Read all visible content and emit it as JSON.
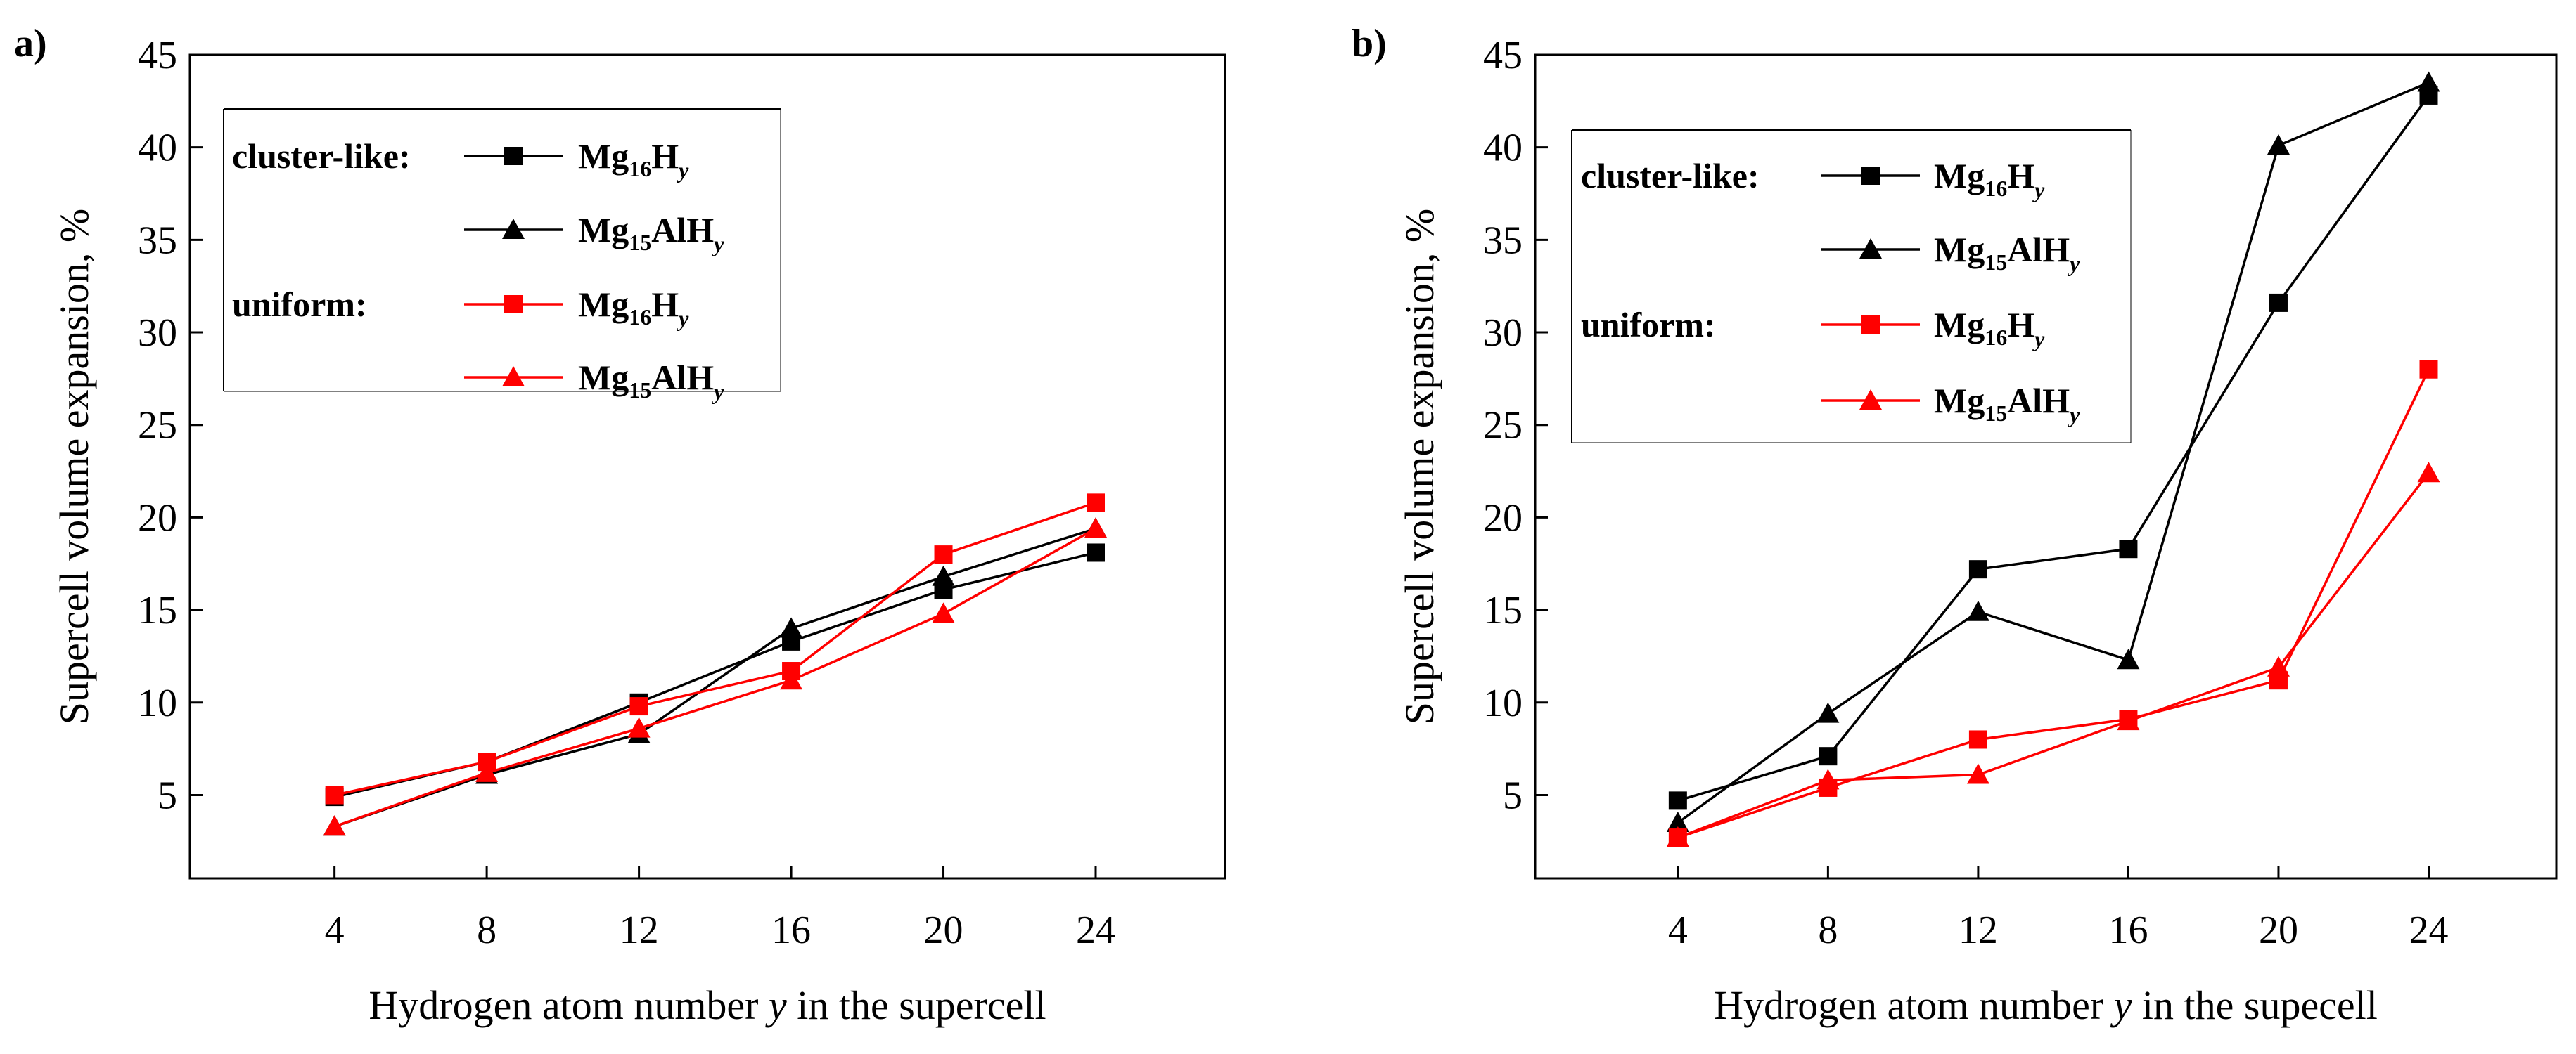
{
  "chart_data": [
    {
      "panel_label": "a)",
      "type": "line",
      "xlabel_pre": "Hydrogen atom number ",
      "xlabel_var": "y",
      "xlabel_post": " in the supercell",
      "ylabel": "Supercell volume expansion, %",
      "x": [
        4,
        8,
        12,
        16,
        20,
        24
      ],
      "xticks": [
        4,
        8,
        12,
        16,
        20,
        24
      ],
      "xlim": [
        0.2,
        27.4
      ],
      "yticks": [
        5,
        10,
        15,
        20,
        25,
        30,
        35,
        40,
        45
      ],
      "ylim": [
        0.5,
        45
      ],
      "legend": {
        "cluster_heading": "cluster-like:",
        "uniform_heading": "uniform:"
      },
      "series": [
        {
          "group": "cluster-like",
          "name": "Mg16Hy",
          "base": "Mg",
          "sub": "16",
          "mid": "H",
          "var": "y",
          "marker": "square",
          "color": "#000000",
          "values": [
            4.9,
            6.8,
            10.0,
            13.3,
            16.1,
            18.1
          ]
        },
        {
          "group": "cluster-like",
          "name": "Mg15AlHy",
          "base": "Mg",
          "sub": "15",
          "mid": "AlH",
          "var": "y",
          "marker": "triangle",
          "color": "#000000",
          "values": [
            3.3,
            6.1,
            8.3,
            14.0,
            16.8,
            19.4
          ]
        },
        {
          "group": "uniform",
          "name": "Mg16Hy",
          "base": "Mg",
          "sub": "16",
          "mid": "H",
          "var": "y",
          "marker": "square",
          "color": "#ff0000",
          "values": [
            5.0,
            6.8,
            9.8,
            11.7,
            18.0,
            20.8
          ]
        },
        {
          "group": "uniform",
          "name": "Mg15AlHy",
          "base": "Mg",
          "sub": "15",
          "mid": "AlH",
          "var": "y",
          "marker": "triangle",
          "color": "#ff0000",
          "values": [
            3.3,
            6.2,
            8.6,
            11.2,
            14.8,
            19.4
          ]
        }
      ]
    },
    {
      "panel_label": "b)",
      "type": "line",
      "xlabel_pre": "Hydrogen atom number ",
      "xlabel_var": "y",
      "xlabel_post": " in the supecell",
      "ylabel": "Supercell volume expansion, %",
      "x": [
        4,
        8,
        12,
        16,
        20,
        24
      ],
      "xticks": [
        4,
        8,
        12,
        16,
        20,
        24
      ],
      "xlim": [
        0.2,
        27.4
      ],
      "yticks": [
        5,
        10,
        15,
        20,
        25,
        30,
        35,
        40,
        45
      ],
      "ylim": [
        0.5,
        45
      ],
      "legend": {
        "cluster_heading": "cluster-like:",
        "uniform_heading": "uniform:"
      },
      "series": [
        {
          "group": "cluster-like",
          "name": "Mg16Hy",
          "base": "Mg",
          "sub": "16",
          "mid": "H",
          "var": "y",
          "marker": "square",
          "color": "#000000",
          "values": [
            4.7,
            7.1,
            17.2,
            18.3,
            31.6,
            42.8
          ]
        },
        {
          "group": "cluster-like",
          "name": "Mg15AlHy",
          "base": "Mg",
          "sub": "15",
          "mid": "AlH",
          "var": "y",
          "marker": "triangle",
          "color": "#000000",
          "values": [
            3.5,
            9.4,
            14.9,
            12.3,
            40.1,
            43.5
          ]
        },
        {
          "group": "uniform",
          "name": "Mg16Hy",
          "base": "Mg",
          "sub": "16",
          "mid": "H",
          "var": "y",
          "marker": "square",
          "color": "#ff0000",
          "values": [
            2.7,
            5.4,
            8.0,
            9.1,
            11.2,
            28.0
          ]
        },
        {
          "group": "uniform",
          "name": "Mg15AlHy",
          "base": "Mg",
          "sub": "15",
          "mid": "AlH",
          "var": "y",
          "marker": "triangle",
          "color": "#ff0000",
          "values": [
            2.7,
            5.8,
            6.1,
            9.0,
            11.9,
            22.4
          ]
        }
      ]
    }
  ]
}
